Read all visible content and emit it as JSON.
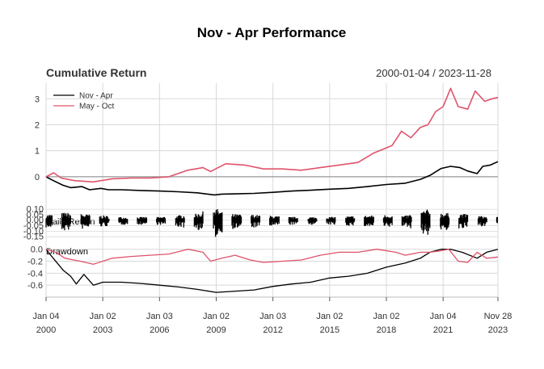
{
  "chart_data": {
    "type": "line",
    "title": "Nov - Apr Performance",
    "date_range": "2000-01-04 / 2023-11-28",
    "colors": {
      "nov_apr": "#000000",
      "may_oct": "#df536b",
      "grid": "#d9d9d9",
      "zero": "#999999"
    },
    "x_ticks": [
      {
        "label_top": "Jan 04",
        "label_bottom": "2000",
        "year": 2000.0
      },
      {
        "label_top": "Jan 02",
        "label_bottom": "2003",
        "year": 2003.0
      },
      {
        "label_top": "Jan 03",
        "label_bottom": "2006",
        "year": 2006.0
      },
      {
        "label_top": "Jan 02",
        "label_bottom": "2009",
        "year": 2009.0
      },
      {
        "label_top": "Jan 03",
        "label_bottom": "2012",
        "year": 2012.0
      },
      {
        "label_top": "Jan 02",
        "label_bottom": "2015",
        "year": 2015.0
      },
      {
        "label_top": "Jan 02",
        "label_bottom": "2018",
        "year": 2018.0
      },
      {
        "label_top": "Jan 04",
        "label_bottom": "2021",
        "year": 2021.0
      },
      {
        "label_top": "Nov 28",
        "label_bottom": "2023",
        "year": 2023.9
      }
    ],
    "x_range": [
      2000.0,
      2023.9
    ],
    "panels": [
      {
        "name": "cumulative-return",
        "title": "Cumulative Return",
        "ylim": [
          -0.75,
          3.6
        ],
        "y_ticks": [
          0,
          1,
          2,
          3
        ],
        "legend": [
          {
            "name": "Nov - Apr",
            "color": "#000000"
          },
          {
            "name": "May - Oct",
            "color": "#df536b"
          }
        ],
        "series": [
          {
            "name": "Nov - Apr",
            "color": "#000000",
            "points": [
              [
                2000.0,
                0.0
              ],
              [
                2000.3,
                -0.12
              ],
              [
                2000.9,
                -0.33
              ],
              [
                2001.3,
                -0.42
              ],
              [
                2001.9,
                -0.38
              ],
              [
                2002.3,
                -0.5
              ],
              [
                2002.9,
                -0.45
              ],
              [
                2003.3,
                -0.5
              ],
              [
                2004.0,
                -0.5
              ],
              [
                2005.0,
                -0.53
              ],
              [
                2006.0,
                -0.55
              ],
              [
                2007.0,
                -0.58
              ],
              [
                2008.0,
                -0.62
              ],
              [
                2008.9,
                -0.7
              ],
              [
                2009.3,
                -0.67
              ],
              [
                2010.0,
                -0.66
              ],
              [
                2011.0,
                -0.64
              ],
              [
                2012.0,
                -0.6
              ],
              [
                2013.0,
                -0.55
              ],
              [
                2014.0,
                -0.52
              ],
              [
                2015.0,
                -0.48
              ],
              [
                2016.0,
                -0.45
              ],
              [
                2017.0,
                -0.38
              ],
              [
                2018.0,
                -0.3
              ],
              [
                2019.0,
                -0.25
              ],
              [
                2019.8,
                -0.1
              ],
              [
                2020.3,
                0.05
              ],
              [
                2020.9,
                0.32
              ],
              [
                2021.4,
                0.4
              ],
              [
                2021.9,
                0.35
              ],
              [
                2022.3,
                0.22
              ],
              [
                2022.8,
                0.12
              ],
              [
                2023.1,
                0.4
              ],
              [
                2023.5,
                0.45
              ],
              [
                2023.9,
                0.58
              ]
            ]
          },
          {
            "name": "May - Oct",
            "color": "#df536b",
            "points": [
              [
                2000.0,
                0.0
              ],
              [
                2000.4,
                0.15
              ],
              [
                2000.8,
                -0.05
              ],
              [
                2001.5,
                -0.15
              ],
              [
                2002.5,
                -0.2
              ],
              [
                2003.5,
                -0.08
              ],
              [
                2004.5,
                -0.05
              ],
              [
                2005.5,
                -0.05
              ],
              [
                2006.5,
                0.0
              ],
              [
                2007.5,
                0.25
              ],
              [
                2008.3,
                0.35
              ],
              [
                2008.7,
                0.2
              ],
              [
                2009.5,
                0.5
              ],
              [
                2010.5,
                0.45
              ],
              [
                2011.5,
                0.3
              ],
              [
                2012.5,
                0.3
              ],
              [
                2013.5,
                0.25
              ],
              [
                2014.5,
                0.35
              ],
              [
                2015.5,
                0.45
              ],
              [
                2016.5,
                0.55
              ],
              [
                2017.3,
                0.9
              ],
              [
                2018.3,
                1.2
              ],
              [
                2018.8,
                1.75
              ],
              [
                2019.3,
                1.5
              ],
              [
                2019.8,
                1.9
              ],
              [
                2020.2,
                2.0
              ],
              [
                2020.6,
                2.5
              ],
              [
                2021.0,
                2.7
              ],
              [
                2021.4,
                3.4
              ],
              [
                2021.8,
                2.7
              ],
              [
                2022.3,
                2.6
              ],
              [
                2022.7,
                3.3
              ],
              [
                2023.2,
                2.9
              ],
              [
                2023.6,
                3.0
              ],
              [
                2023.9,
                3.05
              ]
            ]
          }
        ]
      },
      {
        "name": "daily-return",
        "title": "Daily Return",
        "ylim": [
          -0.2,
          0.13
        ],
        "y_ticks": [
          0.1,
          0.05,
          0.0,
          -0.05,
          -0.1,
          -0.15
        ],
        "y_tick_labels": [
          "0.10",
          "0.05",
          "0.00",
          "-0.05",
          "-0.10",
          "-0.15"
        ],
        "spread": [
          [
            2000.0,
            0.05
          ],
          [
            2001.0,
            0.07
          ],
          [
            2002.5,
            0.05
          ],
          [
            2004.0,
            0.03
          ],
          [
            2006.0,
            0.03
          ],
          [
            2008.0,
            0.06
          ],
          [
            2008.9,
            0.12
          ],
          [
            2009.5,
            0.06
          ],
          [
            2011.0,
            0.05
          ],
          [
            2013.0,
            0.03
          ],
          [
            2015.0,
            0.03
          ],
          [
            2016.5,
            0.04
          ],
          [
            2018.0,
            0.05
          ],
          [
            2019.0,
            0.04
          ],
          [
            2020.2,
            0.1
          ],
          [
            2020.6,
            0.07
          ],
          [
            2022.0,
            0.06
          ],
          [
            2023.0,
            0.04
          ],
          [
            2023.9,
            0.03
          ]
        ]
      },
      {
        "name": "drawdown",
        "title": "Drawdown",
        "ylim": [
          -0.8,
          0.05
        ],
        "y_ticks": [
          0.0,
          -0.2,
          -0.4,
          -0.6
        ],
        "y_tick_labels": [
          "0.0",
          "-0.2",
          "-0.4",
          "-0.6"
        ],
        "series": [
          {
            "name": "Nov - Apr",
            "color": "#000000",
            "points": [
              [
                2000.0,
                0.0
              ],
              [
                2000.3,
                -0.12
              ],
              [
                2000.9,
                -0.35
              ],
              [
                2001.3,
                -0.45
              ],
              [
                2001.6,
                -0.58
              ],
              [
                2002.0,
                -0.42
              ],
              [
                2002.5,
                -0.6
              ],
              [
                2003.0,
                -0.55
              ],
              [
                2004.0,
                -0.55
              ],
              [
                2005.0,
                -0.57
              ],
              [
                2006.0,
                -0.6
              ],
              [
                2007.0,
                -0.63
              ],
              [
                2008.0,
                -0.67
              ],
              [
                2009.0,
                -0.72
              ],
              [
                2010.0,
                -0.7
              ],
              [
                2011.0,
                -0.68
              ],
              [
                2012.0,
                -0.62
              ],
              [
                2013.0,
                -0.58
              ],
              [
                2014.0,
                -0.55
              ],
              [
                2015.0,
                -0.48
              ],
              [
                2016.0,
                -0.45
              ],
              [
                2017.0,
                -0.4
              ],
              [
                2018.0,
                -0.3
              ],
              [
                2019.0,
                -0.23
              ],
              [
                2019.8,
                -0.15
              ],
              [
                2020.3,
                -0.05
              ],
              [
                2020.9,
                0.0
              ],
              [
                2021.4,
                0.0
              ],
              [
                2022.0,
                -0.05
              ],
              [
                2022.8,
                -0.15
              ],
              [
                2023.3,
                -0.05
              ],
              [
                2023.9,
                0.0
              ]
            ]
          },
          {
            "name": "May - Oct",
            "color": "#df536b",
            "points": [
              [
                2000.0,
                0.0
              ],
              [
                2000.5,
                -0.05
              ],
              [
                2001.0,
                -0.15
              ],
              [
                2001.8,
                -0.2
              ],
              [
                2002.5,
                -0.25
              ],
              [
                2003.5,
                -0.15
              ],
              [
                2004.5,
                -0.12
              ],
              [
                2005.5,
                -0.1
              ],
              [
                2006.5,
                -0.08
              ],
              [
                2007.5,
                0.0
              ],
              [
                2008.3,
                -0.05
              ],
              [
                2008.7,
                -0.2
              ],
              [
                2009.3,
                -0.15
              ],
              [
                2010.0,
                -0.1
              ],
              [
                2010.8,
                -0.18
              ],
              [
                2011.5,
                -0.22
              ],
              [
                2012.5,
                -0.2
              ],
              [
                2013.5,
                -0.18
              ],
              [
                2014.5,
                -0.1
              ],
              [
                2015.5,
                -0.05
              ],
              [
                2016.5,
                -0.05
              ],
              [
                2017.5,
                0.0
              ],
              [
                2018.5,
                -0.05
              ],
              [
                2019.0,
                -0.1
              ],
              [
                2019.8,
                -0.05
              ],
              [
                2020.3,
                -0.05
              ],
              [
                2020.8,
                -0.03
              ],
              [
                2021.3,
                0.0
              ],
              [
                2021.8,
                -0.2
              ],
              [
                2022.3,
                -0.22
              ],
              [
                2022.8,
                -0.05
              ],
              [
                2023.3,
                -0.15
              ],
              [
                2023.9,
                -0.13
              ]
            ]
          }
        ]
      }
    ]
  }
}
